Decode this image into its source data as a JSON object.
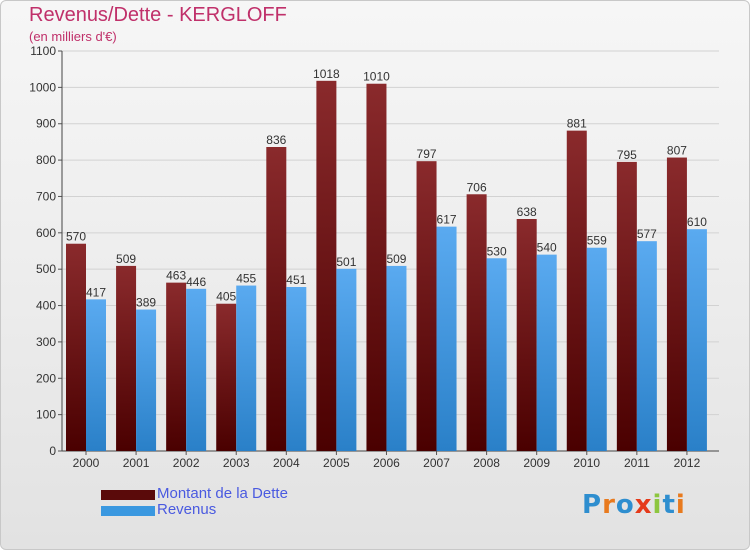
{
  "header": {
    "title": "Revenus/Dette - KERGLOFF",
    "subtitle": "(en milliers d'€)"
  },
  "colors": {
    "title": "#c0306a",
    "debt_top": "#8a2a2c",
    "debt_bottom": "#4a0000",
    "revenue_top": "#5aaaf0",
    "revenue_bottom": "#2a80c8",
    "legend_text": "#4a5ae0",
    "grid": "#d2d2d2"
  },
  "chart_data": {
    "type": "bar",
    "title": "Revenus/Dette - KERGLOFF",
    "subtitle": "(en milliers d'€)",
    "xlabel": "",
    "ylabel": "",
    "categories": [
      "2000",
      "2001",
      "2002",
      "2003",
      "2004",
      "2005",
      "2006",
      "2007",
      "2008",
      "2009",
      "2010",
      "2011",
      "2012"
    ],
    "series": [
      {
        "name": "Montant de la Dette",
        "values": [
          570,
          509,
          463,
          405,
          836,
          1018,
          1010,
          797,
          706,
          638,
          881,
          795,
          807
        ]
      },
      {
        "name": "Revenus",
        "values": [
          417,
          389,
          446,
          455,
          451,
          501,
          509,
          617,
          530,
          540,
          559,
          577,
          610
        ]
      }
    ],
    "ylim": [
      0,
      1100
    ],
    "yticks": [
      "0",
      "100",
      "200",
      "300",
      "400",
      "500",
      "600",
      "700",
      "800",
      "900",
      "1000",
      "1100"
    ],
    "grid": true,
    "legend_position": "bottom-left",
    "data_labels": true
  },
  "legend": {
    "items": [
      {
        "label": "Montant de la Dette",
        "color": "#5a0a0a"
      },
      {
        "label": "Revenus",
        "color": "#3a98e0"
      }
    ]
  },
  "logo": {
    "text": "Proxiti",
    "letter_colors": [
      "#2e8ecf",
      "#e87a1e",
      "#2e8ecf",
      "#e53a1a",
      "#8dc63f",
      "#2e8ecf",
      "#e87a1e"
    ]
  }
}
